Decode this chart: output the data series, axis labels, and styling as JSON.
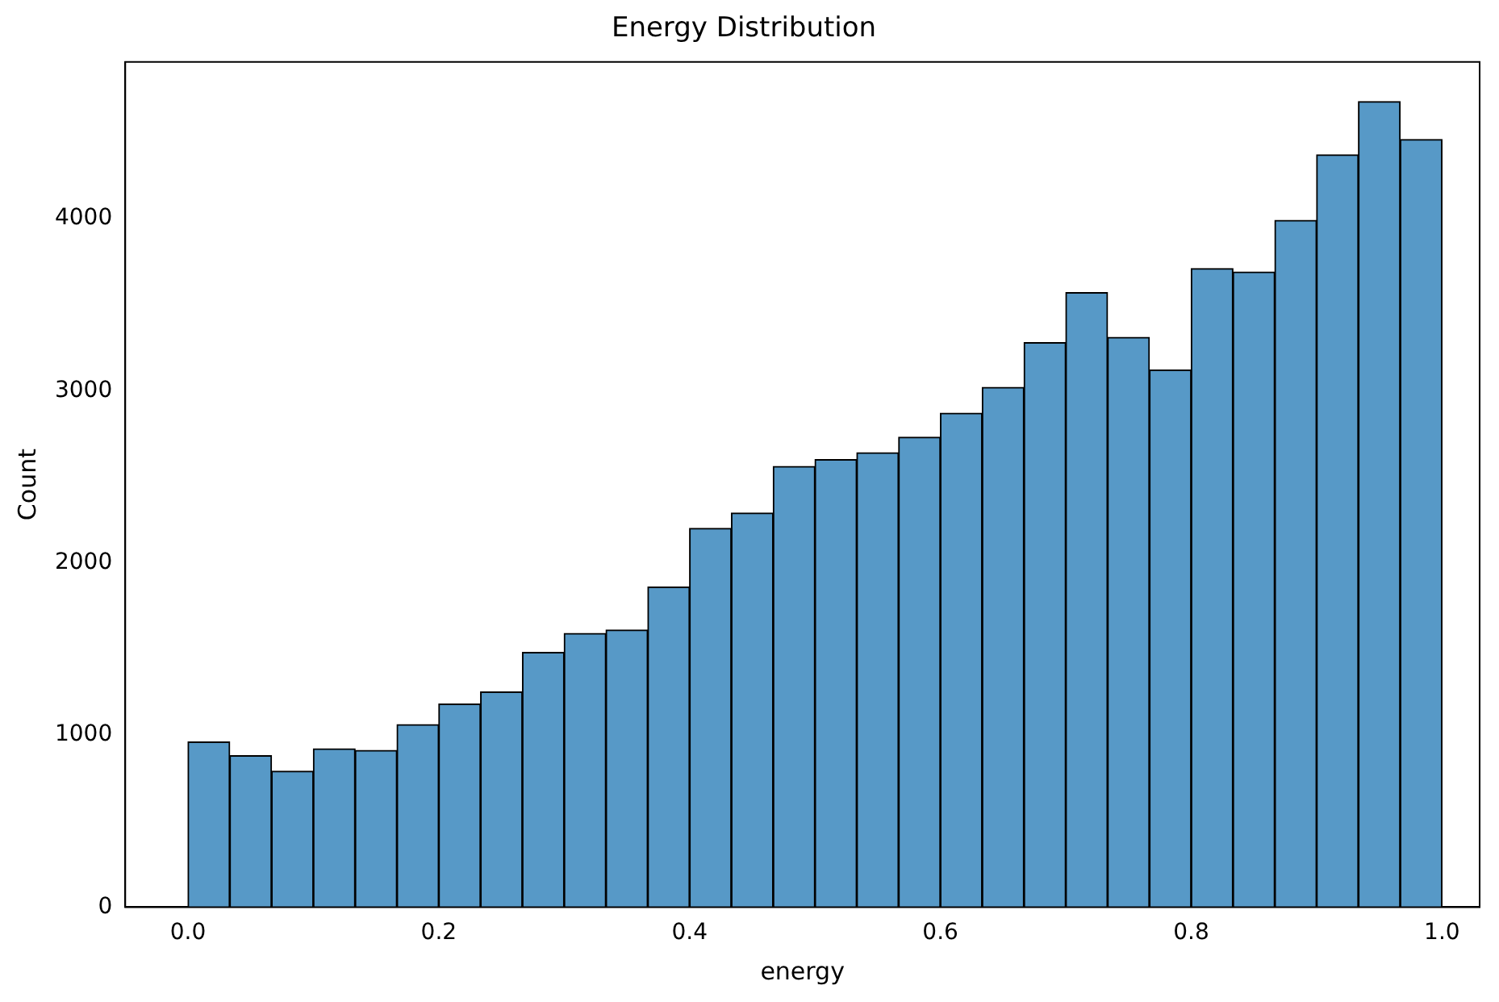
{
  "chart_data": {
    "type": "histogram",
    "title": "Energy Distribution",
    "xlabel": "energy",
    "ylabel": "Count",
    "bins": [
      0,
      0.0333,
      0.0667,
      0.1,
      0.1333,
      0.1667,
      0.2,
      0.2333,
      0.2667,
      0.3,
      0.3333,
      0.3667,
      0.4,
      0.4333,
      0.4667,
      0.5,
      0.5333,
      0.5667,
      0.6,
      0.6333,
      0.6667,
      0.7,
      0.7333,
      0.7667,
      0.8,
      0.8333,
      0.8667,
      0.9,
      0.9333,
      0.9667,
      1
    ],
    "values": [
      960,
      880,
      790,
      920,
      910,
      1060,
      1180,
      1250,
      1480,
      1590,
      1610,
      1860,
      2200,
      2290,
      2560,
      2600,
      2640,
      2730,
      2870,
      3020,
      3280,
      3570,
      3310,
      3120,
      3710,
      3690,
      3990,
      4370,
      4680,
      4460
    ],
    "color": "#5799c7",
    "xlim": [
      -0.05,
      1.03
    ],
    "xticks": [
      {
        "value": 0,
        "label": "0.0"
      },
      0.2,
      0.4,
      0.6,
      0.8,
      {
        "value": 1,
        "label": "1.0"
      }
    ],
    "ylim": [
      0,
      4910
    ],
    "yticks": [
      0,
      1000,
      2000,
      3000,
      4000
    ],
    "grid": false,
    "legend": false
  }
}
